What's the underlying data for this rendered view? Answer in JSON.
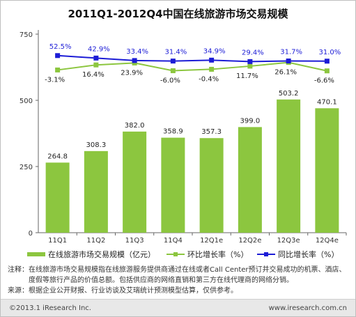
{
  "title": "2011Q1-2012Q4中国在线旅游市场交易规模",
  "chart_data": {
    "type": "bar",
    "categories": [
      "11Q1",
      "11Q2",
      "11Q3",
      "11Q4",
      "12Q1e",
      "12Q2e",
      "12Q3e",
      "12Q4e"
    ],
    "ylim": [
      0,
      750
    ],
    "yticks": [
      "0",
      "250",
      "500",
      "750"
    ],
    "grid": false,
    "legend_position": "bottom",
    "series": [
      {
        "name": "在线旅游市场交易规模（亿元）",
        "type": "bar",
        "color": "#8cc63f",
        "values": [
          264.8,
          308.3,
          382.0,
          358.9,
          357.3,
          399.0,
          503.2,
          470.1
        ],
        "labels": [
          "264.8",
          "308.3",
          "382.0",
          "358.9",
          "357.3",
          "399.0",
          "503.2",
          "470.1"
        ]
      },
      {
        "name": "环比增长率（%）",
        "type": "line",
        "color": "#8cc63f",
        "values": [
          -3.1,
          16.4,
          23.9,
          -6.0,
          -0.4,
          11.7,
          26.1,
          -6.6
        ],
        "labels": [
          "-3.1%",
          "16.4%",
          "23.9%",
          "-6.0%",
          "-0.4%",
          "11.7%",
          "26.1%",
          "-6.6%"
        ]
      },
      {
        "name": "同比增长率（%）",
        "type": "line",
        "color": "#1c1cd6",
        "values": [
          52.5,
          42.9,
          33.4,
          31.4,
          34.9,
          29.4,
          31.7,
          31.0
        ],
        "labels": [
          "52.5%",
          "42.9%",
          "33.4%",
          "31.4%",
          "34.9%",
          "29.4%",
          "31.7%",
          "31.0%"
        ]
      }
    ]
  },
  "legend": {
    "bar": "在线旅游市场交易规模（亿元）",
    "mom": "环比增长率（%）",
    "yoy": "同比增长率（%）"
  },
  "notes": {
    "note_label": "注释：",
    "note_text": "在线旅游市场交易规模指在线旅游服务提供商通过在线或者Call Center预订并交易成功的机票、酒店、度假等旅行产品的价值总额。包括供应商的网络直销和第三方在线代理商的网络分销。",
    "source_label": "来源：",
    "source_text": "根据企业公开财报、行业访谈及艾瑞统计预测模型估算，仅供参考。"
  },
  "footer": {
    "copyright": "©2013.1 iResearch Inc.",
    "website": "www.iresearch.com.cn"
  }
}
